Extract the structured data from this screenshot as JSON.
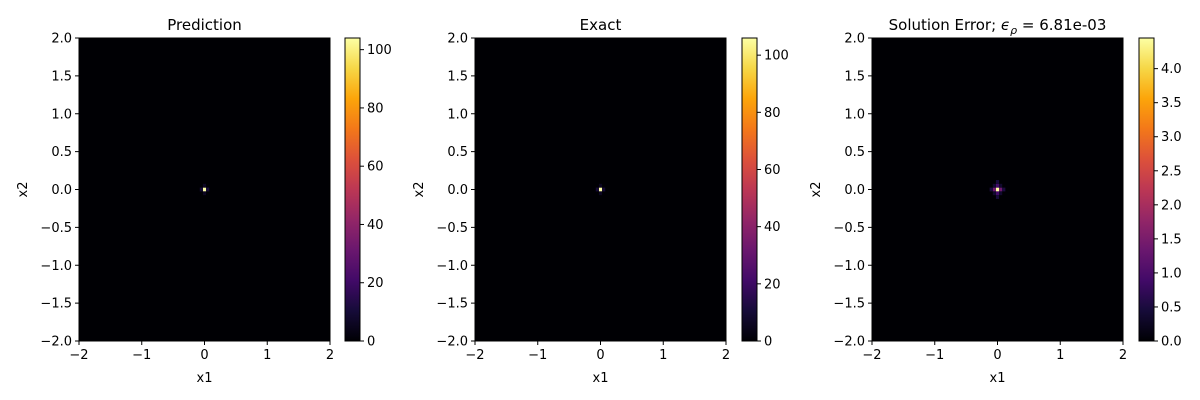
{
  "chart_data": [
    {
      "type": "heatmap",
      "title": "Prediction",
      "xlabel": "x1",
      "ylabel": "x2",
      "xlim": [
        -2,
        2
      ],
      "ylim": [
        -2,
        2
      ],
      "x_ticks": [
        "−2",
        "−1",
        "0",
        "1",
        "2"
      ],
      "y_ticks": [
        "−2.0",
        "−1.5",
        "−1.0",
        "−0.5",
        "0.0",
        "0.5",
        "1.0",
        "1.5",
        "2.0"
      ],
      "colormap": "inferno",
      "colorbar": {
        "min": 0,
        "max": 104,
        "ticks": [
          "0",
          "20",
          "40",
          "60",
          "80",
          "100"
        ]
      },
      "background_value": 0,
      "hotspot": {
        "x": 0,
        "y": 0,
        "cells": [
          {
            "dx": 0,
            "dy": 0,
            "value": 104
          },
          {
            "dx": 0,
            "dy": 1,
            "value": 6
          },
          {
            "dx": 0,
            "dy": -1,
            "value": 6
          },
          {
            "dx": 1,
            "dy": 0,
            "value": 10
          },
          {
            "dx": -1,
            "dy": 0,
            "value": 10
          }
        ]
      }
    },
    {
      "type": "heatmap",
      "title": "Exact",
      "xlabel": "x1",
      "ylabel": "x2",
      "xlim": [
        -2,
        2
      ],
      "ylim": [
        -2,
        2
      ],
      "x_ticks": [
        "−2",
        "−1",
        "0",
        "1",
        "2"
      ],
      "y_ticks": [
        "−2.0",
        "−1.5",
        "−1.0",
        "−0.5",
        "0.0",
        "0.5",
        "1.0",
        "1.5",
        "2.0"
      ],
      "colormap": "inferno",
      "colorbar": {
        "min": 0,
        "max": 106,
        "ticks": [
          "0",
          "20",
          "40",
          "60",
          "80",
          "100"
        ]
      },
      "background_value": 0,
      "hotspot": {
        "x": 0,
        "y": 0,
        "cells": [
          {
            "dx": 0,
            "dy": 0,
            "value": 106
          },
          {
            "dx": 0,
            "dy": 1,
            "value": 6
          },
          {
            "dx": 0,
            "dy": -1,
            "value": 6
          },
          {
            "dx": 1,
            "dy": 0,
            "value": 10
          },
          {
            "dx": -1,
            "dy": 0,
            "value": 10
          }
        ]
      }
    },
    {
      "type": "heatmap",
      "title_prefix": "Solution Error; ",
      "title_symbol": "ϵ",
      "title_subscript": "ρ",
      "title_suffix": " =  6.81e-03",
      "xlabel": "x1",
      "ylabel": "x2",
      "xlim": [
        -2,
        2
      ],
      "ylim": [
        -2,
        2
      ],
      "x_ticks": [
        "−2",
        "−1",
        "0",
        "1",
        "2"
      ],
      "y_ticks": [
        "−2.0",
        "−1.5",
        "−1.0",
        "−0.5",
        "0.0",
        "0.5",
        "1.0",
        "1.5",
        "2.0"
      ],
      "colormap": "inferno",
      "colorbar": {
        "min": 0,
        "max": 4.45,
        "ticks": [
          "0.0",
          "0.5",
          "1.0",
          "1.5",
          "2.0",
          "2.5",
          "3.0",
          "3.5",
          "4.0"
        ]
      },
      "background_value": 0,
      "hotspot": {
        "x": 0,
        "y": 0,
        "cells": [
          {
            "dx": 0,
            "dy": 0,
            "value": 4.45
          },
          {
            "dx": 0,
            "dy": 1,
            "value": 0.9
          },
          {
            "dx": 0,
            "dy": -1,
            "value": 0.9
          },
          {
            "dx": 1,
            "dy": 0,
            "value": 1.4
          },
          {
            "dx": -1,
            "dy": 0,
            "value": 1.4
          },
          {
            "dx": 0,
            "dy": 2,
            "value": 0.45
          },
          {
            "dx": 0,
            "dy": -2,
            "value": 0.45
          },
          {
            "dx": 2,
            "dy": 0,
            "value": 0.5
          },
          {
            "dx": -2,
            "dy": 0,
            "value": 0.5
          },
          {
            "dx": 1,
            "dy": 1,
            "value": 0.35
          },
          {
            "dx": -1,
            "dy": 1,
            "value": 0.35
          },
          {
            "dx": 1,
            "dy": -1,
            "value": 0.35
          },
          {
            "dx": -1,
            "dy": -1,
            "value": 0.35
          }
        ]
      }
    }
  ]
}
